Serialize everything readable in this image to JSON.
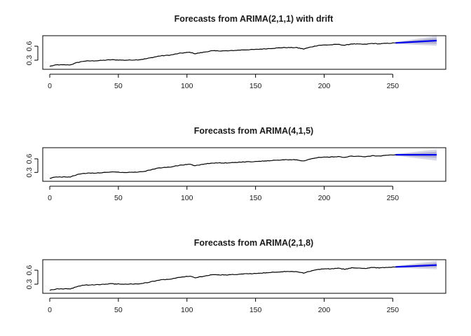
{
  "chart_data": [
    {
      "type": "line",
      "title": "Forecasts from ARIMA(2,1,1) with drift",
      "xlim": [
        0,
        282
      ],
      "ylim": [
        0.15,
        0.78
      ],
      "x_ticks": [
        0,
        50,
        100,
        150,
        200,
        250
      ],
      "y_ticks": [
        0.3,
        0.6
      ],
      "history_knots": [
        [
          0,
          0.17
        ],
        [
          5,
          0.2
        ],
        [
          15,
          0.2
        ],
        [
          20,
          0.25
        ],
        [
          25,
          0.28
        ],
        [
          35,
          0.29
        ],
        [
          45,
          0.31
        ],
        [
          55,
          0.3
        ],
        [
          65,
          0.31
        ],
        [
          70,
          0.33
        ],
        [
          75,
          0.36
        ],
        [
          80,
          0.39
        ],
        [
          88,
          0.41
        ],
        [
          95,
          0.45
        ],
        [
          102,
          0.47
        ],
        [
          106,
          0.44
        ],
        [
          110,
          0.46
        ],
        [
          118,
          0.5
        ],
        [
          130,
          0.5
        ],
        [
          140,
          0.52
        ],
        [
          150,
          0.53
        ],
        [
          160,
          0.55
        ],
        [
          170,
          0.57
        ],
        [
          180,
          0.57
        ],
        [
          185,
          0.54
        ],
        [
          190,
          0.58
        ],
        [
          196,
          0.62
        ],
        [
          205,
          0.63
        ],
        [
          210,
          0.64
        ],
        [
          215,
          0.62
        ],
        [
          220,
          0.65
        ],
        [
          230,
          0.64
        ],
        [
          235,
          0.66
        ],
        [
          240,
          0.65
        ],
        [
          245,
          0.66
        ],
        [
          252,
          0.67
        ]
      ],
      "forecast": {
        "x": [
          252,
          282
        ],
        "mean": [
          0.67,
          0.72
        ],
        "lo80": [
          0.66,
          0.65
        ],
        "hi80": [
          0.68,
          0.78
        ],
        "lo95": [
          0.65,
          0.61
        ],
        "hi95": [
          0.69,
          0.82
        ]
      }
    },
    {
      "type": "line",
      "title": "Forecasts from ARIMA(4,1,5)",
      "xlim": [
        0,
        282
      ],
      "ylim": [
        0.15,
        0.8
      ],
      "x_ticks": [
        0,
        50,
        100,
        150,
        200,
        250
      ],
      "y_ticks": [
        0.3,
        0.6
      ],
      "history_knots": [
        [
          0,
          0.17
        ],
        [
          5,
          0.2
        ],
        [
          15,
          0.2
        ],
        [
          20,
          0.25
        ],
        [
          25,
          0.28
        ],
        [
          35,
          0.29
        ],
        [
          45,
          0.31
        ],
        [
          55,
          0.3
        ],
        [
          65,
          0.31
        ],
        [
          70,
          0.33
        ],
        [
          75,
          0.37
        ],
        [
          80,
          0.4
        ],
        [
          88,
          0.42
        ],
        [
          95,
          0.46
        ],
        [
          102,
          0.48
        ],
        [
          106,
          0.45
        ],
        [
          110,
          0.47
        ],
        [
          118,
          0.51
        ],
        [
          130,
          0.51
        ],
        [
          140,
          0.53
        ],
        [
          150,
          0.54
        ],
        [
          160,
          0.56
        ],
        [
          170,
          0.58
        ],
        [
          180,
          0.58
        ],
        [
          185,
          0.55
        ],
        [
          190,
          0.6
        ],
        [
          196,
          0.63
        ],
        [
          205,
          0.64
        ],
        [
          210,
          0.65
        ],
        [
          215,
          0.63
        ],
        [
          220,
          0.66
        ],
        [
          230,
          0.65
        ],
        [
          235,
          0.67
        ],
        [
          240,
          0.66
        ],
        [
          245,
          0.68
        ],
        [
          252,
          0.69
        ]
      ],
      "forecast": {
        "x": [
          252,
          282
        ],
        "mean": [
          0.69,
          0.69
        ],
        "lo80": [
          0.68,
          0.62
        ],
        "hi80": [
          0.7,
          0.76
        ],
        "lo95": [
          0.67,
          0.56
        ],
        "hi95": [
          0.71,
          0.81
        ]
      }
    },
    {
      "type": "line",
      "title": "Forecasts from ARIMA(2,1,8)",
      "xlim": [
        0,
        282
      ],
      "ylim": [
        0.15,
        0.78
      ],
      "x_ticks": [
        0,
        50,
        100,
        150,
        200,
        250
      ],
      "y_ticks": [
        0.3,
        0.6
      ],
      "history_knots": [
        [
          0,
          0.17
        ],
        [
          5,
          0.2
        ],
        [
          15,
          0.2
        ],
        [
          20,
          0.25
        ],
        [
          25,
          0.28
        ],
        [
          35,
          0.29
        ],
        [
          45,
          0.31
        ],
        [
          55,
          0.3
        ],
        [
          65,
          0.31
        ],
        [
          70,
          0.33
        ],
        [
          75,
          0.36
        ],
        [
          80,
          0.39
        ],
        [
          88,
          0.41
        ],
        [
          95,
          0.45
        ],
        [
          102,
          0.47
        ],
        [
          106,
          0.44
        ],
        [
          110,
          0.46
        ],
        [
          118,
          0.5
        ],
        [
          130,
          0.5
        ],
        [
          140,
          0.52
        ],
        [
          150,
          0.53
        ],
        [
          160,
          0.55
        ],
        [
          170,
          0.57
        ],
        [
          180,
          0.57
        ],
        [
          185,
          0.54
        ],
        [
          190,
          0.58
        ],
        [
          196,
          0.62
        ],
        [
          205,
          0.63
        ],
        [
          210,
          0.64
        ],
        [
          215,
          0.62
        ],
        [
          220,
          0.65
        ],
        [
          230,
          0.64
        ],
        [
          235,
          0.66
        ],
        [
          240,
          0.65
        ],
        [
          245,
          0.66
        ],
        [
          252,
          0.67
        ]
      ],
      "forecast": {
        "x": [
          252,
          282
        ],
        "mean": [
          0.67,
          0.71
        ],
        "lo80": [
          0.66,
          0.66
        ],
        "hi80": [
          0.68,
          0.76
        ],
        "lo95": [
          0.65,
          0.62
        ],
        "hi95": [
          0.69,
          0.8
        ]
      }
    }
  ],
  "colors": {
    "history": "#000000",
    "forecast_mean": "#0000ee",
    "band80": "#b4b4d0",
    "band95": "#d8d8e8"
  }
}
